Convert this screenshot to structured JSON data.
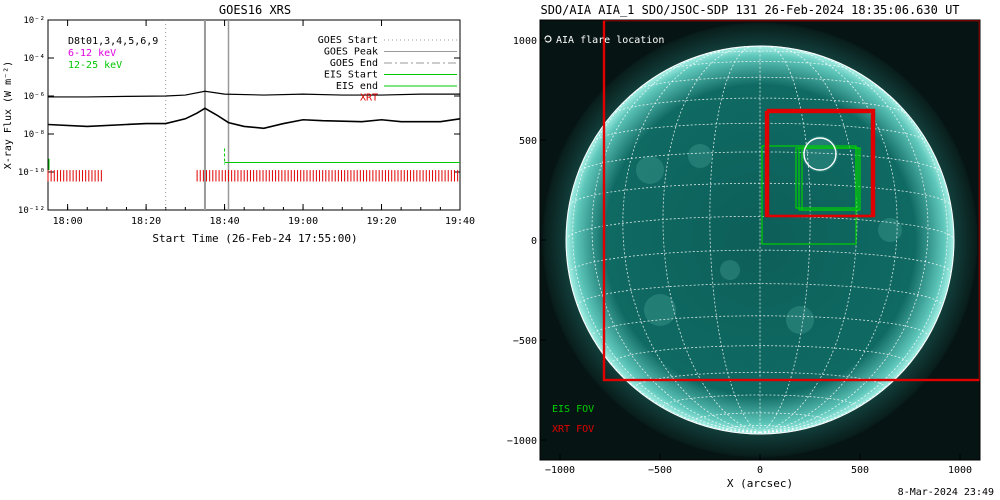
{
  "footer": {
    "timestamp": "8-Mar-2024 23:49"
  },
  "chart_data": [
    {
      "type": "line",
      "title": "GOES16 XRS",
      "xlabel": "Start Time (26-Feb-24 17:55:00)",
      "ylabel": "X-ray Flux (W m⁻²)",
      "y_scale": "log",
      "x_units": "minutes after 17:55:00",
      "xlim": [
        0,
        105
      ],
      "ylim": [
        1e-12,
        0.01
      ],
      "x_ticks": [
        {
          "value": 5,
          "label": "18:00"
        },
        {
          "value": 25,
          "label": "18:20"
        },
        {
          "value": 45,
          "label": "18:40"
        },
        {
          "value": 65,
          "label": "19:00"
        },
        {
          "value": 85,
          "label": "19:20"
        },
        {
          "value": 105,
          "label": "19:40"
        }
      ],
      "y_ticks": [
        {
          "value": -12,
          "label": "10⁻¹²"
        },
        {
          "value": -10,
          "label": "10⁻¹⁰"
        },
        {
          "value": -8,
          "label": "10⁻⁸"
        },
        {
          "value": -6,
          "label": "10⁻⁶"
        },
        {
          "value": -4,
          "label": "10⁻⁴"
        },
        {
          "value": -2,
          "label": "10⁻²"
        }
      ],
      "legend": [
        {
          "label": "D8t01,3,4,5,6,9",
          "color": "#000000"
        },
        {
          "label": "6-12 keV",
          "color": "#e000e0"
        },
        {
          "label": "12-25 keV",
          "color": "#00c800"
        }
      ],
      "markers_legend": [
        {
          "label": "GOES Start",
          "color": "#999999",
          "style": "dotted"
        },
        {
          "label": "GOES Peak",
          "color": "#999999",
          "style": "solid"
        },
        {
          "label": "GOES End",
          "color": "#999999",
          "style": "dashdot"
        },
        {
          "label": "EIS Start",
          "color": "#00c800",
          "style": "solid"
        },
        {
          "label": "EIS end",
          "color": "#00c800",
          "style": "solid"
        },
        {
          "label": "XRT",
          "color": "#e00000",
          "style": "text"
        }
      ],
      "goes_start": 30,
      "goes_peak": 40,
      "goes_end": 46,
      "series": [
        {
          "x": [
            0,
            10,
            20,
            30,
            35,
            40,
            45,
            55,
            65,
            75,
            85,
            95,
            105
          ],
          "log_y": [
            -6.05,
            -6.05,
            -6.02,
            -6.0,
            -5.95,
            -5.75,
            -5.9,
            -5.95,
            -5.9,
            -5.95,
            -5.95,
            -5.9,
            -5.9
          ]
        },
        {
          "x": [
            0,
            10,
            20,
            25,
            30,
            35,
            38,
            40,
            43,
            46,
            50,
            55,
            60,
            65,
            70,
            80,
            85,
            90,
            100,
            105
          ],
          "log_y": [
            -7.5,
            -7.6,
            -7.5,
            -7.45,
            -7.45,
            -7.2,
            -6.9,
            -6.65,
            -7.0,
            -7.4,
            -7.6,
            -7.7,
            -7.45,
            -7.25,
            -7.3,
            -7.35,
            -7.25,
            -7.35,
            -7.35,
            -7.2
          ]
        }
      ],
      "eis_line": {
        "x_start": 45,
        "x_end": 105,
        "log_y": -9.5
      },
      "xrt_bars": {
        "log_y_bottom": -10.5,
        "log_y_top": -9.9,
        "intervals": [
          [
            0,
            14
          ],
          [
            38,
            105
          ]
        ]
      }
    },
    {
      "type": "scatter",
      "title": "SDO/AIA AIA_1 SDO/JSOC-SDP 131 26-Feb-2024 18:35:06.630 UT",
      "xlabel": "X (arcsec)",
      "ylabel": "",
      "xlim": [
        -1100,
        1100
      ],
      "ylim": [
        -1100,
        1100
      ],
      "x_ticks": [
        -1000,
        -500,
        0,
        500,
        1000
      ],
      "y_ticks": [
        -1000,
        -500,
        0,
        500,
        1000
      ],
      "solar_radius": 970,
      "flare_legend": "AIA flare location",
      "flare": {
        "x": 300,
        "y": 430,
        "r": 80
      },
      "eis_fov": [
        {
          "x1": 10,
          "y1": 470,
          "x2": 480,
          "y2": -20
        },
        {
          "x1": 180,
          "y1": 460,
          "x2": 480,
          "y2": 160
        },
        {
          "x1": 195,
          "y1": 460,
          "x2": 490,
          "y2": 150
        },
        {
          "x1": 210,
          "y1": 460,
          "x2": 500,
          "y2": 150
        }
      ],
      "xrt_fov": [
        {
          "x1": 30,
          "y1": 640,
          "x2": 560,
          "y2": 120
        },
        {
          "x1": 40,
          "y1": 650,
          "x2": 570,
          "y2": 120
        },
        {
          "x1": -780,
          "y1": 1100,
          "x2": 1100,
          "y2": -700
        }
      ],
      "labels": {
        "eis": "EIS FOV",
        "xrt": "XRT FOV"
      },
      "colors": {
        "eis": "#00d000",
        "xrt": "#e00000",
        "disk": "#0b5a55"
      }
    }
  ]
}
